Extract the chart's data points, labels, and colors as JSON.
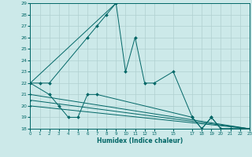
{
  "xlabel": "Humidex (Indice chaleur)",
  "bg_color": "#cce9e9",
  "grid_color": "#b0d0d0",
  "line_color": "#006666",
  "series": [
    {
      "x": [
        0,
        1,
        2,
        6,
        7,
        8,
        9,
        10,
        11,
        12,
        13,
        15,
        17,
        18,
        19,
        20,
        21,
        22,
        23
      ],
      "y": [
        22,
        22,
        22,
        26,
        27,
        28,
        29,
        23,
        26,
        22,
        22,
        23,
        19,
        18,
        19,
        18,
        18,
        18,
        18
      ]
    },
    {
      "x": [
        0,
        9
      ],
      "y": [
        22,
        29
      ]
    },
    {
      "x": [
        0,
        2,
        3,
        4,
        5,
        6,
        7,
        17,
        18,
        19,
        20,
        21,
        22,
        23
      ],
      "y": [
        22,
        21,
        20,
        19,
        19,
        21,
        21,
        19,
        18,
        19,
        18,
        18,
        18,
        18
      ]
    },
    {
      "x": [
        0,
        23
      ],
      "y": [
        21,
        18
      ]
    },
    {
      "x": [
        0,
        23
      ],
      "y": [
        20.5,
        18
      ]
    },
    {
      "x": [
        0,
        23
      ],
      "y": [
        20,
        18
      ]
    }
  ],
  "ylim": [
    18,
    29
  ],
  "xlim": [
    0,
    23
  ],
  "yticks": [
    18,
    19,
    20,
    21,
    22,
    23,
    24,
    25,
    26,
    27,
    28,
    29
  ],
  "xticks": [
    0,
    1,
    2,
    3,
    4,
    5,
    6,
    7,
    8,
    9,
    10,
    11,
    12,
    13,
    15,
    17,
    18,
    19,
    20,
    21,
    22,
    23
  ]
}
